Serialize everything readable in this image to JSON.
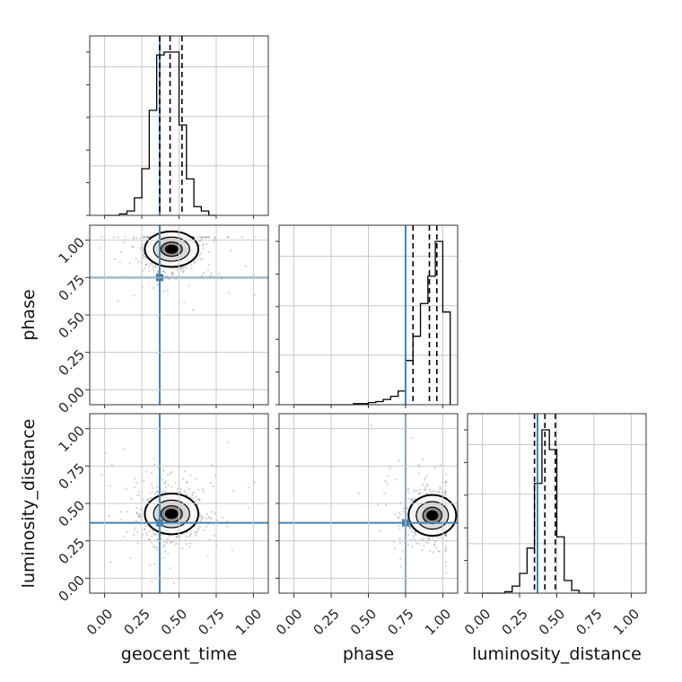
{
  "chart_data": {
    "type": "corner",
    "parameters": [
      "geocent_time",
      "phase",
      "luminosity_distance"
    ],
    "truths": {
      "geocent_time": 0.37,
      "phase": 0.75,
      "luminosity_distance": 0.37
    },
    "ticks": [
      "0.00",
      "0.25",
      "0.50",
      "0.75",
      "1.00"
    ],
    "xlim": [
      -0.1,
      1.1
    ],
    "truth_color": "#4682b4",
    "grid": true,
    "histograms": [
      {
        "name": "geocent_time",
        "bin_edges": [
          0.0,
          0.05,
          0.1,
          0.15,
          0.2,
          0.25,
          0.3,
          0.35,
          0.4,
          0.45,
          0.5,
          0.55,
          0.6,
          0.65,
          0.7,
          0.75
        ],
        "counts": [
          0,
          0,
          1,
          3,
          12,
          32,
          72,
          110,
          112,
          112,
          62,
          25,
          6,
          3,
          0
        ],
        "quantile_lines": [
          0.37,
          0.44,
          0.52
        ]
      },
      {
        "name": "phase",
        "bin_edges": [
          0.0,
          0.05,
          0.1,
          0.15,
          0.2,
          0.25,
          0.3,
          0.35,
          0.4,
          0.45,
          0.5,
          0.55,
          0.6,
          0.65,
          0.7,
          0.75,
          0.8,
          0.85,
          0.9,
          0.95,
          1.0,
          1.05
        ],
        "counts": [
          0,
          0,
          0,
          0,
          0,
          0,
          0,
          0,
          1,
          1,
          2,
          3,
          5,
          8,
          13,
          42,
          65,
          96,
          122,
          155,
          88
        ],
        "quantile_lines": [
          0.8,
          0.91,
          0.96
        ]
      },
      {
        "name": "luminosity_distance",
        "bin_edges": [
          0.0,
          0.05,
          0.1,
          0.15,
          0.2,
          0.25,
          0.3,
          0.35,
          0.4,
          0.45,
          0.5,
          0.55,
          0.6,
          0.65,
          0.7,
          0.75
        ],
        "counts": [
          0,
          0,
          0,
          1,
          5,
          14,
          32,
          78,
          116,
          102,
          40,
          9,
          2,
          0,
          0
        ],
        "quantile_lines": [
          0.35,
          0.42,
          0.49
        ]
      }
    ],
    "scatter_panels": [
      {
        "x": "geocent_time",
        "y": "phase",
        "center": [
          0.45,
          0.94
        ],
        "spread": [
          0.09,
          0.07
        ]
      },
      {
        "x": "geocent_time",
        "y": "luminosity_distance",
        "center": [
          0.45,
          0.43
        ],
        "spread": [
          0.09,
          0.08
        ]
      },
      {
        "x": "phase",
        "y": "luminosity_distance",
        "center": [
          0.93,
          0.42
        ],
        "spread": [
          0.08,
          0.08
        ]
      }
    ]
  }
}
